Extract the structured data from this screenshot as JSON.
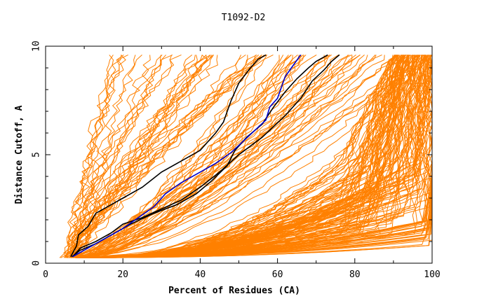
{
  "chart_data": {
    "type": "line",
    "title": "T1092-D2",
    "xlabel": "Percent of Residues (CA)",
    "ylabel": "Distance Cutoff, A",
    "xlim": [
      0,
      100
    ],
    "ylim": [
      0,
      10
    ],
    "x_ticks": [
      0,
      20,
      40,
      60,
      80,
      100
    ],
    "y_ticks": [
      0,
      5,
      10
    ],
    "grid": false,
    "legend": "none",
    "colors": {
      "background_models": "#ff8000",
      "highlight_black": "#000000",
      "highlight_blue": "#0000cc"
    },
    "highlight_series": [
      {
        "color": "#000000",
        "points": [
          [
            6.5,
            0.3
          ],
          [
            8,
            0.8
          ],
          [
            8.5,
            1.3
          ],
          [
            11,
            1.7
          ],
          [
            13,
            2.3
          ],
          [
            17,
            2.7
          ],
          [
            20,
            3.0
          ],
          [
            25,
            3.5
          ],
          [
            30,
            4.2
          ],
          [
            35,
            4.7
          ],
          [
            40,
            5.2
          ],
          [
            44,
            6.0
          ],
          [
            46,
            6.5
          ],
          [
            48,
            7.5
          ],
          [
            50,
            8.3
          ],
          [
            53,
            9.0
          ],
          [
            55,
            9.4
          ],
          [
            57,
            9.6
          ]
        ]
      },
      {
        "color": "#000000",
        "points": [
          [
            7,
            0.3
          ],
          [
            9,
            0.7
          ],
          [
            13,
            1.0
          ],
          [
            17,
            1.4
          ],
          [
            20,
            1.8
          ],
          [
            25,
            2.1
          ],
          [
            30,
            2.5
          ],
          [
            35,
            2.9
          ],
          [
            40,
            3.5
          ],
          [
            45,
            4.2
          ],
          [
            50,
            5.0
          ],
          [
            56,
            5.8
          ],
          [
            62,
            6.8
          ],
          [
            66,
            7.6
          ],
          [
            69,
            8.4
          ],
          [
            72,
            8.9
          ],
          [
            74,
            9.3
          ],
          [
            76,
            9.6
          ]
        ]
      },
      {
        "color": "#000000",
        "points": [
          [
            6.8,
            0.3
          ],
          [
            9,
            0.6
          ],
          [
            13,
            0.9
          ],
          [
            17,
            1.3
          ],
          [
            22,
            1.8
          ],
          [
            28,
            2.3
          ],
          [
            34,
            2.7
          ],
          [
            39,
            3.2
          ],
          [
            43,
            3.8
          ],
          [
            47,
            4.5
          ],
          [
            49,
            5.2
          ],
          [
            52,
            5.8
          ],
          [
            56,
            6.4
          ],
          [
            59,
            7.2
          ],
          [
            62,
            7.9
          ],
          [
            65,
            8.5
          ],
          [
            68,
            9.0
          ],
          [
            70,
            9.3
          ],
          [
            73,
            9.6
          ]
        ]
      },
      {
        "color": "#0000cc",
        "points": [
          [
            7,
            0.3
          ],
          [
            9,
            0.5
          ],
          [
            12,
            0.8
          ],
          [
            16,
            1.2
          ],
          [
            20,
            1.6
          ],
          [
            24,
            2.1
          ],
          [
            28,
            2.6
          ],
          [
            31,
            3.2
          ],
          [
            35,
            3.7
          ],
          [
            40,
            4.2
          ],
          [
            44,
            4.6
          ],
          [
            48,
            5.1
          ],
          [
            51,
            5.6
          ],
          [
            54,
            6.1
          ],
          [
            57,
            6.6
          ],
          [
            58,
            7.2
          ],
          [
            60,
            7.6
          ],
          [
            61,
            8.1
          ],
          [
            62,
            8.6
          ],
          [
            64,
            9.1
          ],
          [
            66,
            9.6
          ]
        ]
      }
    ]
  }
}
